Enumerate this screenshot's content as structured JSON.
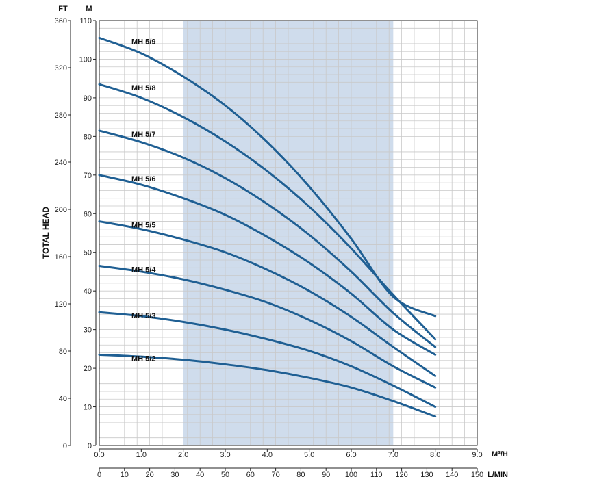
{
  "chart_data": {
    "type": "line",
    "ylabel": "TOTAL HEAD",
    "y_units": {
      "meters": "M",
      "feet": "FT"
    },
    "x_units": {
      "m3h": "M³/H",
      "lmin": "L/MIN"
    },
    "x_m3h_ticks": [
      "0.0",
      "1.0",
      "2.0",
      "3.0",
      "4.0",
      "5.0",
      "6.0",
      "7.0",
      "8.0",
      "9.0"
    ],
    "x_lmin_ticks": [
      "0",
      "10",
      "20",
      "30",
      "40",
      "50",
      "60",
      "70",
      "80",
      "90",
      "100",
      "110",
      "120",
      "130",
      "140",
      "150"
    ],
    "y_m_ticks": [
      "0",
      "10",
      "20",
      "30",
      "40",
      "50",
      "60",
      "70",
      "80",
      "90",
      "100",
      "110"
    ],
    "y_ft_ticks": [
      "0",
      "40",
      "80",
      "120",
      "160",
      "200",
      "240",
      "280",
      "320",
      "360"
    ],
    "xlim_m3h": [
      0,
      9
    ],
    "xlim_lmin": [
      0,
      150
    ],
    "ylim_m": [
      0,
      110
    ],
    "ylim_ft": [
      0,
      360
    ],
    "grid": true,
    "highlight_band_m3h": [
      2.0,
      7.0
    ],
    "highlight_color": "#cfdcec",
    "curve_color": "#1f5f93",
    "series": [
      {
        "name": "MH 5/2",
        "x": [
          0,
          1,
          2,
          3,
          4,
          5,
          6,
          7,
          8
        ],
        "y": [
          23.5,
          23.0,
          22.2,
          21.0,
          19.5,
          17.5,
          15.0,
          11.5,
          7.5
        ]
      },
      {
        "name": "MH 5/3",
        "x": [
          0,
          1,
          2,
          3,
          4,
          5,
          6,
          7,
          8
        ],
        "y": [
          34.5,
          33.5,
          32.0,
          30.0,
          27.5,
          24.5,
          20.5,
          15.5,
          10.0
        ]
      },
      {
        "name": "MH 5/4",
        "x": [
          0,
          1,
          2,
          3,
          4,
          5,
          6,
          7,
          8
        ],
        "y": [
          46.5,
          45.0,
          43.0,
          40.3,
          37.0,
          32.5,
          27.0,
          20.5,
          15.0
        ]
      },
      {
        "name": "MH 5/5",
        "x": [
          0,
          1,
          2,
          3,
          4,
          5,
          6,
          7,
          8
        ],
        "y": [
          58.0,
          56.0,
          53.3,
          50.0,
          45.5,
          40.0,
          33.3,
          25.5,
          18.0
        ]
      },
      {
        "name": "MH 5/6",
        "x": [
          0,
          1,
          2,
          3,
          4,
          5,
          6,
          7,
          8
        ],
        "y": [
          70.0,
          67.5,
          64.0,
          59.7,
          54.0,
          47.3,
          39.3,
          30.0,
          23.5
        ]
      },
      {
        "name": "MH 5/7",
        "x": [
          0,
          1,
          2,
          3,
          4,
          5,
          6,
          7,
          8
        ],
        "y": [
          81.5,
          78.5,
          74.5,
          69.2,
          62.5,
          54.5,
          45.0,
          34.3,
          25.5
        ]
      },
      {
        "name": "MH 5/8",
        "x": [
          0,
          1,
          2,
          3,
          4,
          5,
          6,
          7,
          8
        ],
        "y": [
          93.5,
          90.0,
          85.0,
          78.7,
          71.0,
          61.8,
          51.0,
          39.0,
          27.5
        ]
      },
      {
        "name": "MH 5/9",
        "x": [
          0,
          1,
          2,
          3,
          4,
          5,
          6,
          7,
          8
        ],
        "y": [
          105.5,
          101.5,
          95.5,
          88.0,
          78.5,
          67.0,
          53.5,
          38.5,
          33.5
        ]
      }
    ]
  }
}
